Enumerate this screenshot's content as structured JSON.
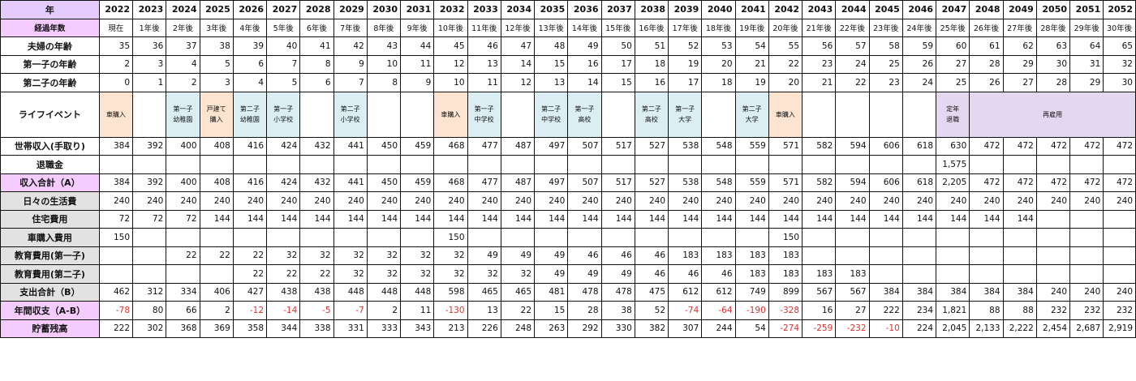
{
  "headers": {
    "year_label": "年",
    "years": [
      "2022",
      "2023",
      "2024",
      "2025",
      "2026",
      "2027",
      "2028",
      "2029",
      "2030",
      "2031",
      "2032",
      "2033",
      "2034",
      "2035",
      "2036",
      "2037",
      "2038",
      "2039",
      "2040",
      "2041",
      "2042",
      "2043",
      "2044",
      "2045",
      "2046",
      "2047",
      "2048",
      "2049",
      "2050",
      "2051",
      "2052"
    ],
    "elapsed_label": "経過年数",
    "elapsed": [
      "現在",
      "1年後",
      "2年後",
      "3年後",
      "4年後",
      "5年後",
      "6年後",
      "7年後",
      "8年後",
      "9年後",
      "10年後",
      "11年後",
      "12年後",
      "13年後",
      "14年後",
      "15年後",
      "16年後",
      "17年後",
      "18年後",
      "19年後",
      "20年後",
      "21年後",
      "22年後",
      "23年後",
      "24年後",
      "25年後",
      "26年後",
      "27年後",
      "28年後",
      "29年後",
      "30年後"
    ]
  },
  "age_rows": [
    {
      "label": "夫婦の年齢",
      "values": [
        "35",
        "36",
        "37",
        "38",
        "39",
        "40",
        "41",
        "42",
        "43",
        "44",
        "45",
        "46",
        "47",
        "48",
        "49",
        "50",
        "51",
        "52",
        "53",
        "54",
        "55",
        "56",
        "57",
        "58",
        "59",
        "60",
        "61",
        "62",
        "63",
        "64",
        "65"
      ]
    },
    {
      "label": "第一子の年齢",
      "values": [
        "2",
        "3",
        "4",
        "5",
        "6",
        "7",
        "8",
        "9",
        "10",
        "11",
        "12",
        "13",
        "14",
        "15",
        "16",
        "17",
        "18",
        "19",
        "20",
        "21",
        "22",
        "23",
        "24",
        "25",
        "26",
        "27",
        "28",
        "29",
        "30",
        "31",
        "32"
      ]
    },
    {
      "label": "第二子の年齢",
      "values": [
        "0",
        "1",
        "2",
        "3",
        "4",
        "5",
        "6",
        "7",
        "8",
        "9",
        "10",
        "11",
        "12",
        "13",
        "14",
        "15",
        "16",
        "17",
        "18",
        "19",
        "20",
        "21",
        "22",
        "23",
        "24",
        "25",
        "26",
        "27",
        "28",
        "29",
        "30"
      ]
    }
  ],
  "life_events": {
    "label": "ライフイベント",
    "events": [
      {
        "text": "車購入",
        "kind": "car"
      },
      {
        "text": "",
        "kind": ""
      },
      {
        "text": "第一子\n幼稚園",
        "kind": "child"
      },
      {
        "text": "戸建て\n購入",
        "kind": "car"
      },
      {
        "text": "第二子\n幼稚園",
        "kind": "child"
      },
      {
        "text": "第一子\n小学校",
        "kind": "child"
      },
      {
        "text": "",
        "kind": ""
      },
      {
        "text": "第二子\n小学校",
        "kind": "child"
      },
      {
        "text": "",
        "kind": ""
      },
      {
        "text": "",
        "kind": ""
      },
      {
        "text": "車購入",
        "kind": "car"
      },
      {
        "text": "第一子\n中学校",
        "kind": "child"
      },
      {
        "text": "",
        "kind": ""
      },
      {
        "text": "第二子\n中学校",
        "kind": "child"
      },
      {
        "text": "第一子\n高校",
        "kind": "child"
      },
      {
        "text": "",
        "kind": ""
      },
      {
        "text": "第二子\n高校",
        "kind": "child"
      },
      {
        "text": "第一子\n大学",
        "kind": "child"
      },
      {
        "text": "",
        "kind": ""
      },
      {
        "text": "第二子\n大学",
        "kind": "child"
      },
      {
        "text": "車購入",
        "kind": "car"
      },
      {
        "text": "",
        "kind": ""
      },
      {
        "text": "",
        "kind": ""
      },
      {
        "text": "",
        "kind": ""
      },
      {
        "text": "",
        "kind": ""
      },
      {
        "text": "定年\n退職",
        "kind": "ret"
      }
    ],
    "reemployment": "再雇用"
  },
  "rows": [
    {
      "label": "世帯収入(手取り)",
      "label_class": "",
      "values": [
        "384",
        "392",
        "400",
        "408",
        "416",
        "424",
        "432",
        "441",
        "450",
        "459",
        "468",
        "477",
        "487",
        "497",
        "507",
        "517",
        "527",
        "538",
        "548",
        "559",
        "571",
        "582",
        "594",
        "606",
        "618",
        "630",
        "472",
        "472",
        "472",
        "472",
        "472"
      ]
    },
    {
      "label": "退職金",
      "label_class": "",
      "values": [
        "",
        "",
        "",
        "",
        "",
        "",
        "",
        "",
        "",
        "",
        "",
        "",
        "",
        "",
        "",
        "",
        "",
        "",
        "",
        "",
        "",
        "",
        "",
        "",
        "",
        "1,575",
        "",
        "",
        "",
        "",
        ""
      ]
    },
    {
      "label": "収入合計（A）",
      "label_class": "purple",
      "values": [
        "384",
        "392",
        "400",
        "408",
        "416",
        "424",
        "432",
        "441",
        "450",
        "459",
        "468",
        "477",
        "487",
        "497",
        "507",
        "517",
        "527",
        "538",
        "548",
        "559",
        "571",
        "582",
        "594",
        "606",
        "618",
        "2,205",
        "472",
        "472",
        "472",
        "472",
        "472"
      ]
    },
    {
      "label": "日々の生活費",
      "label_class": "grey",
      "values": [
        "240",
        "240",
        "240",
        "240",
        "240",
        "240",
        "240",
        "240",
        "240",
        "240",
        "240",
        "240",
        "240",
        "240",
        "240",
        "240",
        "240",
        "240",
        "240",
        "240",
        "240",
        "240",
        "240",
        "240",
        "240",
        "240",
        "240",
        "240",
        "240",
        "240",
        "240"
      ]
    },
    {
      "label": "住宅費用",
      "label_class": "grey",
      "values": [
        "72",
        "72",
        "72",
        "144",
        "144",
        "144",
        "144",
        "144",
        "144",
        "144",
        "144",
        "144",
        "144",
        "144",
        "144",
        "144",
        "144",
        "144",
        "144",
        "144",
        "144",
        "144",
        "144",
        "144",
        "144",
        "144",
        "144",
        "144",
        "",
        "",
        ""
      ]
    },
    {
      "label": "車購入費用",
      "label_class": "grey",
      "values": [
        "150",
        "",
        "",
        "",
        "",
        "",
        "",
        "",
        "",
        "",
        "150",
        "",
        "",
        "",
        "",
        "",
        "",
        "",
        "",
        "",
        "150",
        "",
        "",
        "",
        "",
        "",
        "",
        "",
        "",
        "",
        ""
      ]
    },
    {
      "label": "教育費用(第一子)",
      "label_class": "grey",
      "values": [
        "",
        "",
        "22",
        "22",
        "22",
        "32",
        "32",
        "32",
        "32",
        "32",
        "32",
        "49",
        "49",
        "49",
        "46",
        "46",
        "46",
        "183",
        "183",
        "183",
        "183",
        "",
        "",
        "",
        "",
        "",
        "",
        "",
        "",
        "",
        ""
      ]
    },
    {
      "label": "教育費用(第二子)",
      "label_class": "grey",
      "values": [
        "",
        "",
        "",
        "",
        "22",
        "22",
        "22",
        "32",
        "32",
        "32",
        "32",
        "32",
        "32",
        "49",
        "49",
        "49",
        "46",
        "46",
        "46",
        "183",
        "183",
        "183",
        "183",
        "",
        "",
        "",
        "",
        "",
        "",
        "",
        ""
      ]
    },
    {
      "label": "支出合計（B）",
      "label_class": "grey",
      "values": [
        "462",
        "312",
        "334",
        "406",
        "427",
        "438",
        "438",
        "448",
        "448",
        "448",
        "598",
        "465",
        "465",
        "481",
        "478",
        "478",
        "475",
        "612",
        "612",
        "749",
        "899",
        "567",
        "567",
        "384",
        "384",
        "384",
        "384",
        "384",
        "240",
        "240",
        "240"
      ]
    },
    {
      "label": "年間収支（A-B）",
      "label_class": "purple",
      "values": [
        "-78",
        "80",
        "66",
        "2",
        "-12",
        "-14",
        "-5",
        "-7",
        "2",
        "11",
        "-130",
        "13",
        "22",
        "15",
        "28",
        "38",
        "52",
        "-74",
        "-64",
        "-190",
        "-328",
        "16",
        "27",
        "222",
        "234",
        "1,821",
        "88",
        "88",
        "232",
        "232",
        "232"
      ]
    },
    {
      "label": "貯蓄残高",
      "label_class": "purple",
      "values": [
        "222",
        "302",
        "368",
        "369",
        "358",
        "344",
        "338",
        "331",
        "333",
        "343",
        "213",
        "226",
        "248",
        "263",
        "292",
        "330",
        "382",
        "307",
        "244",
        "54",
        "-274",
        "-259",
        "-232",
        "-10",
        "224",
        "2,045",
        "2,133",
        "2,222",
        "2,454",
        "2,687",
        "2,919"
      ]
    }
  ]
}
